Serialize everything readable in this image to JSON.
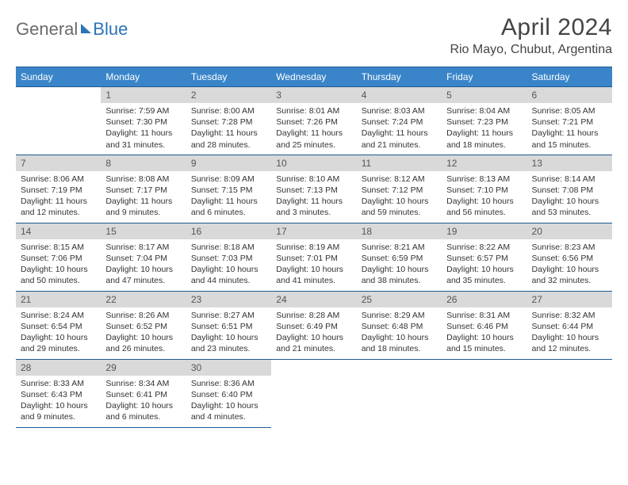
{
  "brand": {
    "part1": "General",
    "part2": "Blue"
  },
  "title": "April 2024",
  "location": "Rio Mayo, Chubut, Argentina",
  "colors": {
    "header_bg": "#3a85c9",
    "header_border": "#1f5a90",
    "header_text": "#ffffff",
    "daynum_bg": "#d9d9d9",
    "daynum_text": "#555555",
    "body_text": "#333333",
    "brand_gray": "#6b6b6b",
    "brand_blue": "#2b74b8"
  },
  "typography": {
    "title_fontsize": 30,
    "location_fontsize": 16,
    "header_fontsize": 12,
    "dayinfo_fontsize": 10.5
  },
  "weekdays": [
    "Sunday",
    "Monday",
    "Tuesday",
    "Wednesday",
    "Thursday",
    "Friday",
    "Saturday"
  ],
  "first_weekday_index": 1,
  "days_in_month": 30,
  "days": {
    "1": {
      "sunrise": "7:59 AM",
      "sunset": "7:30 PM",
      "daylight_h": 11,
      "daylight_m": 31
    },
    "2": {
      "sunrise": "8:00 AM",
      "sunset": "7:28 PM",
      "daylight_h": 11,
      "daylight_m": 28
    },
    "3": {
      "sunrise": "8:01 AM",
      "sunset": "7:26 PM",
      "daylight_h": 11,
      "daylight_m": 25
    },
    "4": {
      "sunrise": "8:03 AM",
      "sunset": "7:24 PM",
      "daylight_h": 11,
      "daylight_m": 21
    },
    "5": {
      "sunrise": "8:04 AM",
      "sunset": "7:23 PM",
      "daylight_h": 11,
      "daylight_m": 18
    },
    "6": {
      "sunrise": "8:05 AM",
      "sunset": "7:21 PM",
      "daylight_h": 11,
      "daylight_m": 15
    },
    "7": {
      "sunrise": "8:06 AM",
      "sunset": "7:19 PM",
      "daylight_h": 11,
      "daylight_m": 12
    },
    "8": {
      "sunrise": "8:08 AM",
      "sunset": "7:17 PM",
      "daylight_h": 11,
      "daylight_m": 9
    },
    "9": {
      "sunrise": "8:09 AM",
      "sunset": "7:15 PM",
      "daylight_h": 11,
      "daylight_m": 6
    },
    "10": {
      "sunrise": "8:10 AM",
      "sunset": "7:13 PM",
      "daylight_h": 11,
      "daylight_m": 3
    },
    "11": {
      "sunrise": "8:12 AM",
      "sunset": "7:12 PM",
      "daylight_h": 10,
      "daylight_m": 59
    },
    "12": {
      "sunrise": "8:13 AM",
      "sunset": "7:10 PM",
      "daylight_h": 10,
      "daylight_m": 56
    },
    "13": {
      "sunrise": "8:14 AM",
      "sunset": "7:08 PM",
      "daylight_h": 10,
      "daylight_m": 53
    },
    "14": {
      "sunrise": "8:15 AM",
      "sunset": "7:06 PM",
      "daylight_h": 10,
      "daylight_m": 50
    },
    "15": {
      "sunrise": "8:17 AM",
      "sunset": "7:04 PM",
      "daylight_h": 10,
      "daylight_m": 47
    },
    "16": {
      "sunrise": "8:18 AM",
      "sunset": "7:03 PM",
      "daylight_h": 10,
      "daylight_m": 44
    },
    "17": {
      "sunrise": "8:19 AM",
      "sunset": "7:01 PM",
      "daylight_h": 10,
      "daylight_m": 41
    },
    "18": {
      "sunrise": "8:21 AM",
      "sunset": "6:59 PM",
      "daylight_h": 10,
      "daylight_m": 38
    },
    "19": {
      "sunrise": "8:22 AM",
      "sunset": "6:57 PM",
      "daylight_h": 10,
      "daylight_m": 35
    },
    "20": {
      "sunrise": "8:23 AM",
      "sunset": "6:56 PM",
      "daylight_h": 10,
      "daylight_m": 32
    },
    "21": {
      "sunrise": "8:24 AM",
      "sunset": "6:54 PM",
      "daylight_h": 10,
      "daylight_m": 29
    },
    "22": {
      "sunrise": "8:26 AM",
      "sunset": "6:52 PM",
      "daylight_h": 10,
      "daylight_m": 26
    },
    "23": {
      "sunrise": "8:27 AM",
      "sunset": "6:51 PM",
      "daylight_h": 10,
      "daylight_m": 23
    },
    "24": {
      "sunrise": "8:28 AM",
      "sunset": "6:49 PM",
      "daylight_h": 10,
      "daylight_m": 21
    },
    "25": {
      "sunrise": "8:29 AM",
      "sunset": "6:48 PM",
      "daylight_h": 10,
      "daylight_m": 18
    },
    "26": {
      "sunrise": "8:31 AM",
      "sunset": "6:46 PM",
      "daylight_h": 10,
      "daylight_m": 15
    },
    "27": {
      "sunrise": "8:32 AM",
      "sunset": "6:44 PM",
      "daylight_h": 10,
      "daylight_m": 12
    },
    "28": {
      "sunrise": "8:33 AM",
      "sunset": "6:43 PM",
      "daylight_h": 10,
      "daylight_m": 9
    },
    "29": {
      "sunrise": "8:34 AM",
      "sunset": "6:41 PM",
      "daylight_h": 10,
      "daylight_m": 6
    },
    "30": {
      "sunrise": "8:36 AM",
      "sunset": "6:40 PM",
      "daylight_h": 10,
      "daylight_m": 4
    }
  }
}
